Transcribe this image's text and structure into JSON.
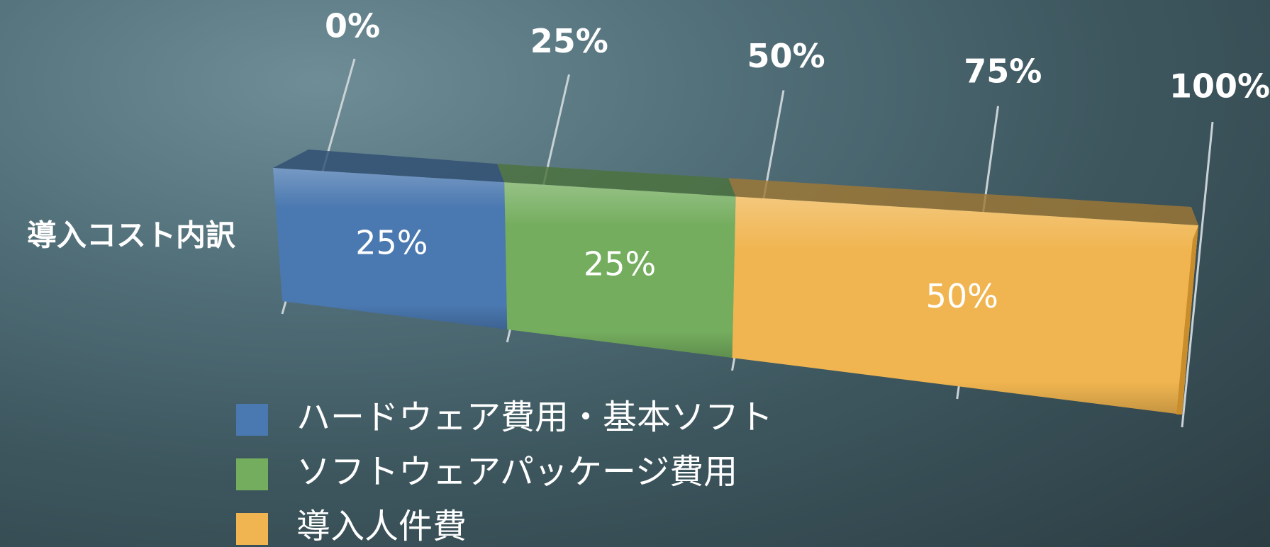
{
  "chart_data": {
    "type": "bar",
    "orientation": "horizontal-stacked-100-3d",
    "categories": [
      "導入コスト内訳"
    ],
    "series": [
      {
        "name": "ハードウェア費用・基本ソフト",
        "values": [
          25
        ],
        "color": "#4a78b0",
        "label": "25%"
      },
      {
        "name": "ソフトウェアパッケージ費用",
        "values": [
          25
        ],
        "color": "#74ad5e",
        "label": "25%"
      },
      {
        "name": "導入人件費",
        "values": [
          50
        ],
        "color": "#f0b550",
        "label": "50%"
      }
    ],
    "xticks": [
      "0%",
      "25%",
      "50%",
      "75%",
      "100%"
    ],
    "xlim": [
      0,
      100
    ],
    "legend_position": "bottom"
  }
}
